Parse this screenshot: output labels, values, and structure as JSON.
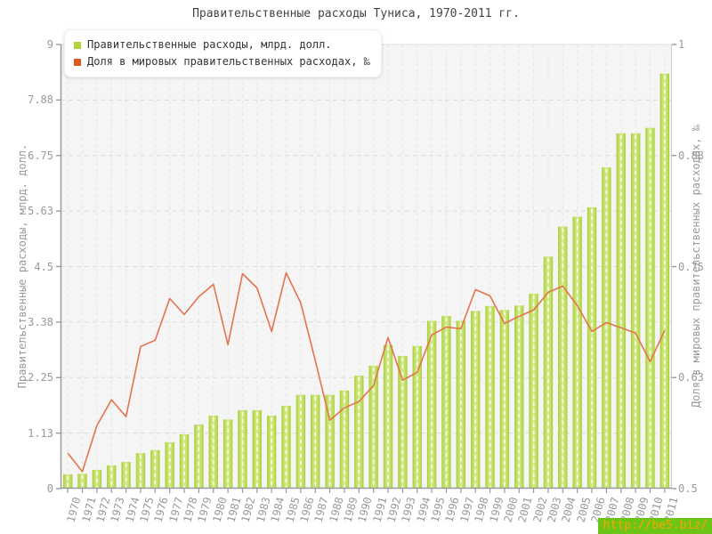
{
  "title": "Правительственные расходы Туниса, 1970-2011 гг.",
  "watermark": "http://be5.biz/",
  "chart_data": {
    "type": "bar",
    "title": "Правительственные расходы Туниса, 1970-2011 гг.",
    "grid": true,
    "legend_position": "top-left",
    "plot_background": "#f5f5f5",
    "categories": [
      "1970",
      "1971",
      "1972",
      "1973",
      "1974",
      "1975",
      "1976",
      "1977",
      "1978",
      "1979",
      "1980",
      "1981",
      "1982",
      "1983",
      "1984",
      "1985",
      "1986",
      "1987",
      "1988",
      "1989",
      "1990",
      "1991",
      "1992",
      "1993",
      "1994",
      "1995",
      "1996",
      "1997",
      "1998",
      "1999",
      "2000",
      "2001",
      "2002",
      "2003",
      "2004",
      "2005",
      "2006",
      "2007",
      "2008",
      "2009",
      "2010",
      "2011"
    ],
    "series": [
      {
        "name": "Правительственные расходы, млрд. долл.",
        "type": "bar",
        "axis": "left",
        "color": "#b2d235",
        "values": [
          0.29,
          0.3,
          0.38,
          0.47,
          0.54,
          0.72,
          0.78,
          0.94,
          1.1,
          1.3,
          1.48,
          1.4,
          1.59,
          1.59,
          1.48,
          1.68,
          1.9,
          1.9,
          1.9,
          1.99,
          2.29,
          2.49,
          2.91,
          2.69,
          2.89,
          3.4,
          3.5,
          3.4,
          3.6,
          3.7,
          3.62,
          3.71,
          3.95,
          4.7,
          5.31,
          5.51,
          5.7,
          6.51,
          7.2,
          7.2,
          7.31,
          8.41
        ]
      },
      {
        "name": "Доля в мировых правительственных расходах, ‰",
        "type": "line",
        "axis": "right",
        "color": "#e4734e",
        "marker_color": "#dd5a1e",
        "values": [
          0.54,
          0.519,
          0.571,
          0.6,
          0.581,
          0.66,
          0.667,
          0.714,
          0.696,
          0.716,
          0.73,
          0.662,
          0.742,
          0.726,
          0.677,
          0.743,
          0.709,
          0.644,
          0.577,
          0.591,
          0.598,
          0.616,
          0.67,
          0.622,
          0.631,
          0.673,
          0.682,
          0.68,
          0.724,
          0.717,
          0.686,
          0.694,
          0.701,
          0.721,
          0.728,
          0.706,
          0.677,
          0.687,
          0.681,
          0.675,
          0.643,
          0.678
        ]
      }
    ],
    "left_axis": {
      "label": "Правительственные расходы, млрд. долл.",
      "range": [
        0,
        9
      ],
      "ticks": [
        {
          "value": 0,
          "label": "0"
        },
        {
          "value": 1.125,
          "label": "1.13"
        },
        {
          "value": 2.25,
          "label": "2.25"
        },
        {
          "value": 3.375,
          "label": "3.38"
        },
        {
          "value": 4.5,
          "label": "4.5"
        },
        {
          "value": 5.625,
          "label": "5.63"
        },
        {
          "value": 6.75,
          "label": "6.75"
        },
        {
          "value": 7.875,
          "label": "7.88"
        },
        {
          "value": 9,
          "label": "9"
        }
      ]
    },
    "right_axis": {
      "label": "Доля в мировых правительственных расходах, ‰",
      "range": [
        0.5,
        1
      ],
      "ticks": [
        {
          "value": 0.5,
          "label": "0.5"
        },
        {
          "value": 0.625,
          "label": "0.63"
        },
        {
          "value": 0.75,
          "label": "0.75"
        },
        {
          "value": 0.875,
          "label": "0.88"
        },
        {
          "value": 1,
          "label": "1"
        }
      ]
    }
  }
}
